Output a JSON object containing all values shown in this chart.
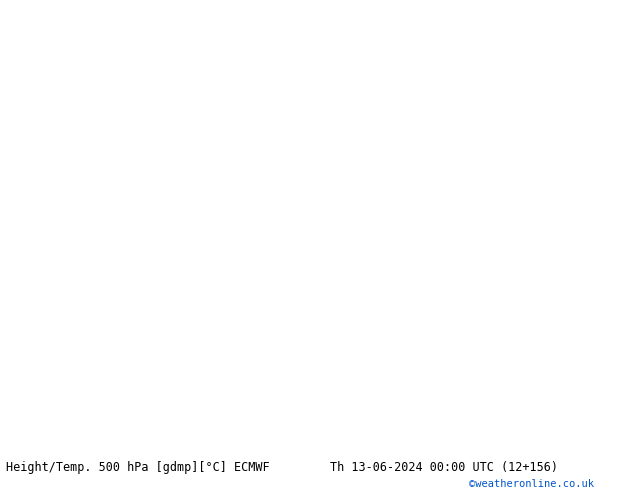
{
  "title_left": "Height/Temp. 500 hPa [gdmp][°C] ECMWF",
  "title_right": "Th 13-06-2024 00:00 UTC (12+156)",
  "watermark": "©weatheronline.co.uk",
  "bg_color": "#e8e8e8",
  "ocean_color": "#e8e8e8",
  "land_color": "#c8e8a0",
  "land_edge_color": "#888888",
  "figsize": [
    6.34,
    4.9
  ],
  "dpi": 100,
  "bottom_bar_height": 0.075,
  "title_color": "#000000",
  "watermark_color": "#0055cc",
  "z500_color": "#000000",
  "temp_neg_color": "#dd0000",
  "temp_pos_color": "#ff8800",
  "temp_zero_color": "#ffdd00",
  "regen_color": "#00cc88",
  "slp_color": "#4444ff",
  "yellow_green_color": "#aacc00"
}
